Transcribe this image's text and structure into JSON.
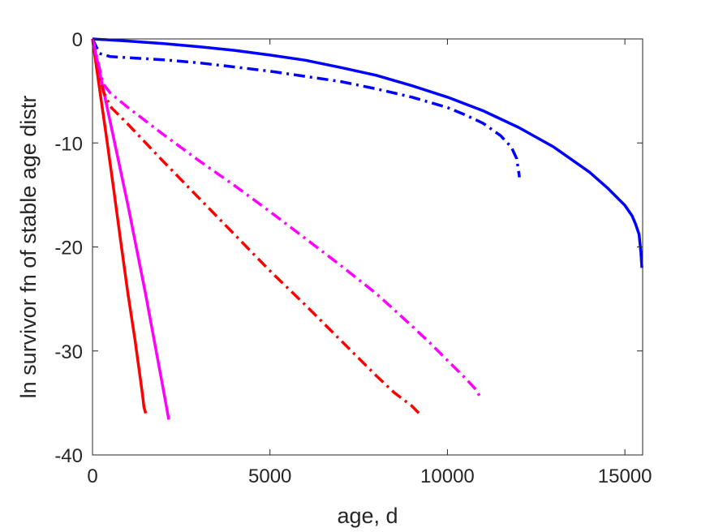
{
  "chart_data": {
    "type": "line",
    "xlabel": "age, d",
    "ylabel": "ln survivor fn of stable age distr",
    "xlim": [
      0,
      15500
    ],
    "ylim": [
      -40,
      0
    ],
    "xticks": [
      0,
      5000,
      10000,
      15000
    ],
    "xtick_labels": [
      "0",
      "5000",
      "10000",
      "15000"
    ],
    "yticks": [
      0,
      -10,
      -20,
      -30,
      -40
    ],
    "ytick_labels": [
      "0",
      "-10",
      "-20",
      "-30",
      "-40"
    ],
    "grid": false,
    "box": true,
    "series": [
      {
        "color": "#0000ff",
        "style": "solid",
        "x": [
          0,
          1000,
          2000,
          3000,
          4000,
          5000,
          6000,
          7000,
          8000,
          9000,
          10000,
          11000,
          12000,
          13000,
          14000,
          14500,
          15000,
          15200,
          15300,
          15400,
          15450,
          15480
        ],
        "y": [
          0,
          -0.2,
          -0.45,
          -0.75,
          -1.1,
          -1.55,
          -2.05,
          -2.75,
          -3.5,
          -4.5,
          -5.6,
          -6.9,
          -8.5,
          -10.4,
          -12.8,
          -14.3,
          -16.0,
          -17.0,
          -17.8,
          -18.8,
          -20.5,
          -22.0
        ]
      },
      {
        "color": "#0000ff",
        "style": "dashdot",
        "x": [
          0,
          200,
          500,
          1000,
          2000,
          3000,
          4000,
          5000,
          6000,
          7000,
          8000,
          9000,
          10000,
          10500,
          11000,
          11500,
          11800,
          11950,
          12000,
          12030
        ],
        "y": [
          0,
          -1.4,
          -1.7,
          -1.8,
          -2.0,
          -2.3,
          -2.7,
          -3.1,
          -3.6,
          -4.1,
          -4.8,
          -5.6,
          -6.6,
          -7.3,
          -8.1,
          -9.3,
          -10.4,
          -11.5,
          -12.6,
          -13.3
        ]
      },
      {
        "color": "#ff0000",
        "style": "solid",
        "x": [
          0,
          200,
          400,
          600,
          800,
          1000,
          1200,
          1300,
          1380,
          1420,
          1450,
          1500
        ],
        "y": [
          0,
          -4.8,
          -9.6,
          -14.5,
          -19.6,
          -24.5,
          -29.0,
          -31.5,
          -33.5,
          -34.5,
          -35.4,
          -36.0
        ]
      },
      {
        "color": "#ff00ff",
        "style": "solid",
        "x": [
          0,
          500,
          1000,
          1500,
          2000,
          2150
        ],
        "y": [
          0,
          -8.0,
          -16.0,
          -24.6,
          -33.8,
          -36.6
        ]
      },
      {
        "color": "#ff0000",
        "style": "dashdot",
        "x": [
          0,
          300,
          500,
          1000,
          2000,
          3000,
          4000,
          5000,
          6000,
          7000,
          8000,
          8500,
          9000,
          9200
        ],
        "y": [
          0,
          -5.0,
          -6.5,
          -8.2,
          -11.8,
          -15.3,
          -18.8,
          -22.3,
          -25.6,
          -29.0,
          -32.4,
          -34.0,
          -35.3,
          -36.0
        ]
      },
      {
        "color": "#ff00ff",
        "style": "dashdot",
        "x": [
          0,
          300,
          500,
          1000,
          2000,
          3000,
          4000,
          5000,
          6000,
          7000,
          8000,
          9000,
          9500,
          10000,
          10500,
          10800,
          10950
        ],
        "y": [
          0,
          -4.3,
          -5.2,
          -6.6,
          -9.2,
          -11.7,
          -14.1,
          -16.6,
          -19.2,
          -21.8,
          -24.5,
          -27.6,
          -29.2,
          -30.9,
          -32.6,
          -33.7,
          -34.6
        ]
      }
    ]
  }
}
